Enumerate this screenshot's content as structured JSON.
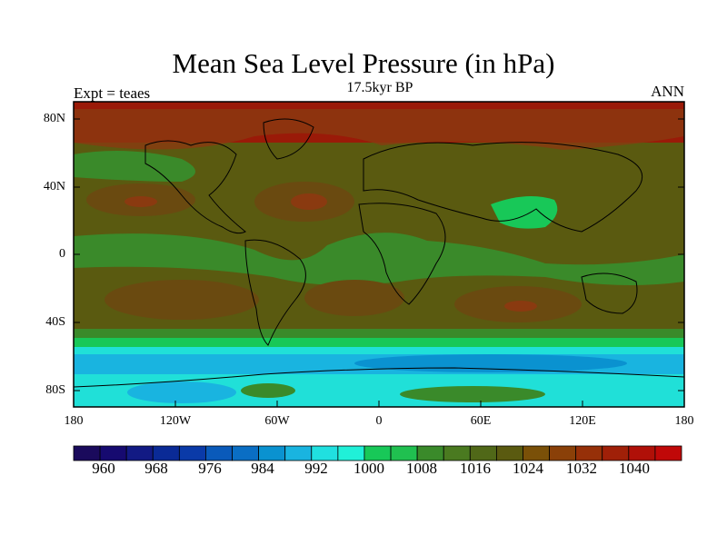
{
  "title": "Mean Sea Level Pressure (in hPa)",
  "subtitle": "17.5kyr BP",
  "left_label": "Expt = teaes",
  "right_label": "ANN",
  "lat_ticks": [
    "80N",
    "40N",
    "0",
    "40S",
    "80S"
  ],
  "lon_ticks": [
    "180",
    "120W",
    "60W",
    "0",
    "60E",
    "120E",
    "180"
  ],
  "colorbar": {
    "labels": [
      "960",
      "968",
      "976",
      "984",
      "992",
      "1000",
      "1008",
      "1016",
      "1024",
      "1032",
      "1040"
    ],
    "colors": [
      "#1a0a5c",
      "#160a70",
      "#121a84",
      "#0a2a96",
      "#0a3aa8",
      "#0a5aba",
      "#0a6ec4",
      "#0a92d0",
      "#19b4e0",
      "#20e0e0",
      "#20f0d8",
      "#18c858",
      "#20c050",
      "#3a8a2a",
      "#4a7a20",
      "#506818",
      "#5a5a10",
      "#7a5008",
      "#8a4008",
      "#963008",
      "#a02008",
      "#b01008",
      "#c00808"
    ]
  },
  "map_colors": {
    "deep_high": "#9a1a08",
    "high": "#8a3a10",
    "mid_high": "#6a4a10",
    "mid": "#5a5a10",
    "mid_low": "#3a8a2a",
    "low": "#18c858",
    "lower": "#20e0d8",
    "lowest": "#19b4e0",
    "deepest": "#0a92d0"
  }
}
